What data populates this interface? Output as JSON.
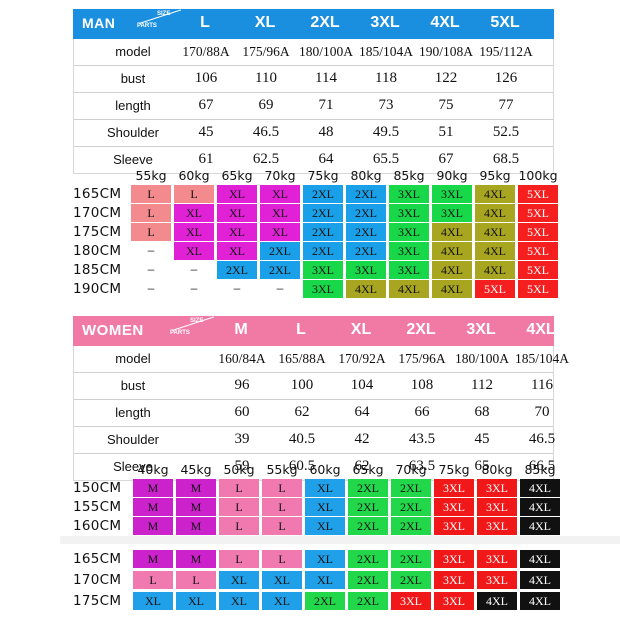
{
  "colors": {
    "man_header": "#1a8fe0",
    "women_header": "#f07aa4",
    "L": "#f28a8e",
    "XL": "#e021d6",
    "2XL": "#1aa0e8",
    "3XL": "#18d84a",
    "4XL": "#a8a520",
    "5XL": "#f51f1f",
    "M": "#cc22cc",
    "W_L": "#f07ab0",
    "W_XL": "#20a0e8",
    "W_2XL": "#22d84a",
    "W_3XL": "#f01818",
    "W_4XL": "#111111"
  },
  "man": {
    "label": "MAN",
    "size_word": "SIZE",
    "parts_word": "PARTS",
    "sizes": [
      "L",
      "XL",
      "2XL",
      "3XL",
      "4XL",
      "5XL"
    ],
    "rows": [
      {
        "label": "model",
        "values": [
          "170/88A",
          "175/96A",
          "180/100A",
          "185/104A",
          "190/108A",
          "195/112A"
        ]
      },
      {
        "label": "bust",
        "values": [
          "106",
          "110",
          "114",
          "118",
          "122",
          "126"
        ]
      },
      {
        "label": "length",
        "values": [
          "67",
          "69",
          "71",
          "73",
          "75",
          "77"
        ]
      },
      {
        "label": "Shoulder",
        "values": [
          "45",
          "46.5",
          "48",
          "49.5",
          "51",
          "52.5"
        ]
      },
      {
        "label": "Sleeve",
        "values": [
          "61",
          "62.5",
          "64",
          "65.5",
          "67",
          "68.5"
        ]
      }
    ]
  },
  "man_grid": {
    "weights": [
      "55kg",
      "60kg",
      "65kg",
      "70kg",
      "75kg",
      "80kg",
      "85kg",
      "90kg",
      "95kg",
      "100kg"
    ],
    "heights": [
      "165CM",
      "170CM",
      "175CM",
      "180CM",
      "185CM",
      "190CM"
    ],
    "cells": [
      [
        "L",
        "L",
        "XL",
        "XL",
        "2XL",
        "2XL",
        "3XL",
        "3XL",
        "4XL",
        "5XL"
      ],
      [
        "L",
        "XL",
        "XL",
        "XL",
        "2XL",
        "2XL",
        "3XL",
        "3XL",
        "4XL",
        "5XL"
      ],
      [
        "L",
        "XL",
        "XL",
        "XL",
        "2XL",
        "2XL",
        "3XL",
        "4XL",
        "4XL",
        "5XL"
      ],
      [
        "–",
        "XL",
        "XL",
        "2XL",
        "2XL",
        "2XL",
        "3XL",
        "4XL",
        "4XL",
        "5XL"
      ],
      [
        "–",
        "–",
        "2XL",
        "2XL",
        "3XL",
        "3XL",
        "3XL",
        "4XL",
        "4XL",
        "5XL"
      ],
      [
        "–",
        "–",
        "–",
        "–",
        "3XL",
        "4XL",
        "4XL",
        "4XL",
        "5XL",
        "5XL"
      ]
    ]
  },
  "women": {
    "label": "WOMEN",
    "size_word": "SIZE",
    "parts_word": "PARTS",
    "sizes": [
      "M",
      "L",
      "XL",
      "2XL",
      "3XL",
      "4XL"
    ],
    "rows": [
      {
        "label": "model",
        "values": [
          "160/84A",
          "165/88A",
          "170/92A",
          "175/96A",
          "180/100A",
          "185/104A"
        ]
      },
      {
        "label": "bust",
        "values": [
          "96",
          "100",
          "104",
          "108",
          "112",
          "116"
        ]
      },
      {
        "label": "length",
        "values": [
          "60",
          "62",
          "64",
          "66",
          "68",
          "70"
        ]
      },
      {
        "label": "Shoulder",
        "values": [
          "39",
          "40.5",
          "42",
          "43.5",
          "45",
          "46.5"
        ]
      },
      {
        "label": "Sleeve",
        "values": [
          "59",
          "60.5",
          "62",
          "63.5",
          "65",
          "66.5"
        ]
      }
    ]
  },
  "women_grid": {
    "weights": [
      "40kg",
      "45kg",
      "50kg",
      "55kg",
      "60kg",
      "65kg",
      "70kg",
      "75kg",
      "80kg",
      "85kg"
    ],
    "heights": [
      "150CM",
      "155CM",
      "160CM",
      "165CM",
      "170CM",
      "175CM"
    ],
    "cells": [
      [
        "M",
        "M",
        "L",
        "L",
        "XL",
        "2XL",
        "2XL",
        "3XL",
        "3XL",
        "4XL"
      ],
      [
        "M",
        "M",
        "L",
        "L",
        "XL",
        "2XL",
        "2XL",
        "3XL",
        "3XL",
        "4XL"
      ],
      [
        "M",
        "M",
        "L",
        "L",
        "XL",
        "2XL",
        "2XL",
        "3XL",
        "3XL",
        "4XL"
      ],
      [
        "M",
        "M",
        "L",
        "L",
        "XL",
        "2XL",
        "2XL",
        "3XL",
        "3XL",
        "4XL"
      ],
      [
        "L",
        "L",
        "XL",
        "XL",
        "XL",
        "2XL",
        "2XL",
        "3XL",
        "3XL",
        "4XL"
      ],
      [
        "XL",
        "XL",
        "XL",
        "XL",
        "2XL",
        "2XL",
        "3XL",
        "3XL",
        "4XL",
        "4XL"
      ]
    ]
  }
}
